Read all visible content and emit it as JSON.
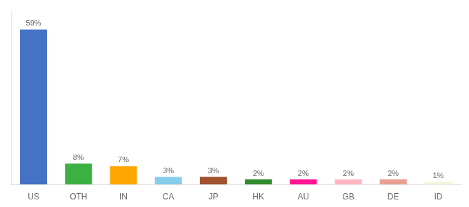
{
  "chart_data": {
    "type": "bar",
    "categories": [
      "US",
      "OTH",
      "IN",
      "CA",
      "JP",
      "HK",
      "AU",
      "GB",
      "DE",
      "ID"
    ],
    "values": [
      59,
      8,
      7,
      3,
      3,
      2,
      2,
      2,
      2,
      1
    ],
    "value_labels": [
      "59%",
      "8%",
      "7%",
      "3%",
      "3%",
      "2%",
      "2%",
      "2%",
      "2%",
      "1%"
    ],
    "colors": [
      "#4472C4",
      "#3CB043",
      "#FFA500",
      "#87CEEB",
      "#A0522D",
      "#2E8B2E",
      "#FF1493",
      "#FFB6C1",
      "#E8A090",
      "#F5F5DC"
    ],
    "ylim": [
      0,
      66
    ],
    "grid": false,
    "data_labels": true,
    "tick_labels": "x"
  }
}
